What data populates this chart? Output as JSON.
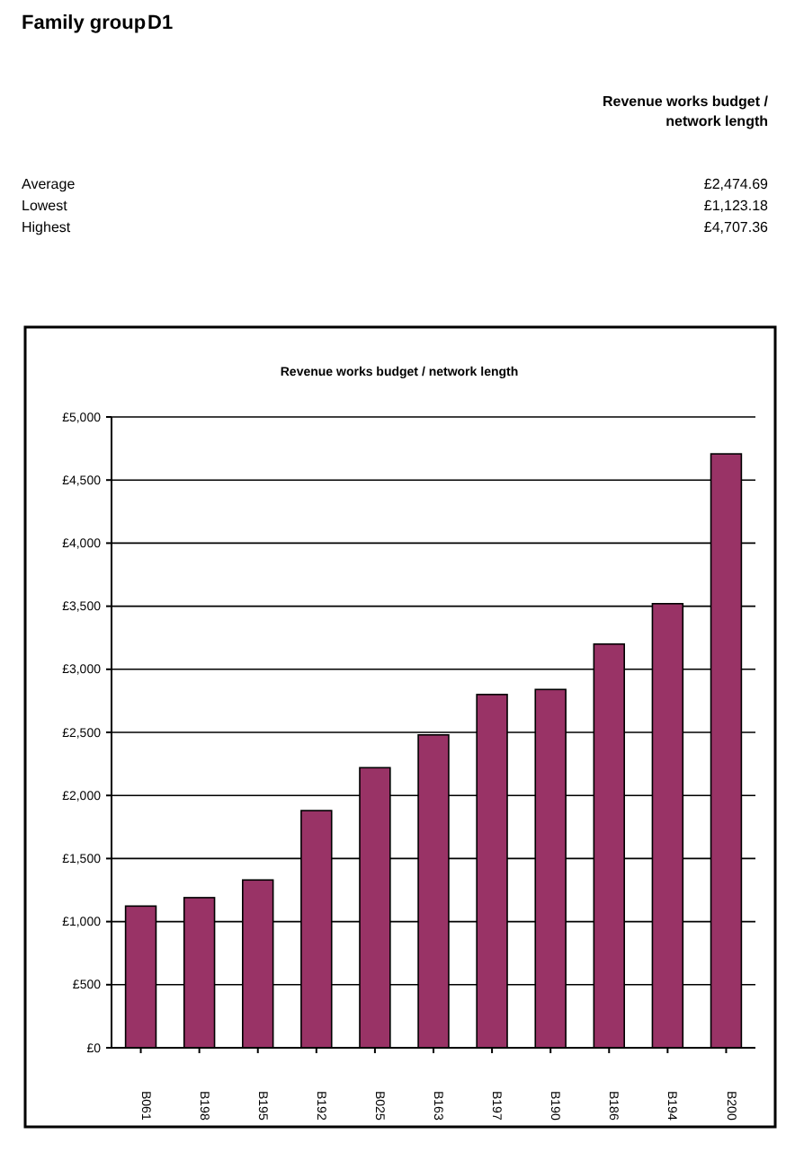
{
  "chart_data": {
    "type": "bar",
    "title": "Revenue works budget / network length",
    "annotations": [
      "Family group",
      "D1",
      "Revenue works budget / network length",
      "Average",
      "£2,474.69",
      "Lowest",
      "£1,123.18",
      "Highest",
      "£4,707.36"
    ],
    "categories": [
      "B061",
      "B198",
      "B195",
      "B192",
      "B025",
      "B163",
      "B197",
      "B190",
      "B186",
      "B194",
      "B200"
    ],
    "values": [
      1123.18,
      1190,
      1330,
      1880,
      2220,
      2480,
      2800,
      2840,
      3200,
      3520,
      4707.36
    ],
    "color": "#993366",
    "ylim": [
      0,
      5000
    ],
    "yticks": [
      {
        "value": 0,
        "label": "£0"
      },
      {
        "value": 500,
        "label": "£500"
      },
      {
        "value": 1000,
        "label": "£1,000"
      },
      {
        "value": 1500,
        "label": "£1,500"
      },
      {
        "value": 2000,
        "label": "£2,000"
      },
      {
        "value": 2500,
        "label": "£2,500"
      },
      {
        "value": 3000,
        "label": "£3,000"
      },
      {
        "value": 3500,
        "label": "£3,500"
      },
      {
        "value": 4000,
        "label": "£4,000"
      },
      {
        "value": 4500,
        "label": "£4,500"
      },
      {
        "value": 5000,
        "label": "£5,000"
      }
    ],
    "grid": "y"
  }
}
